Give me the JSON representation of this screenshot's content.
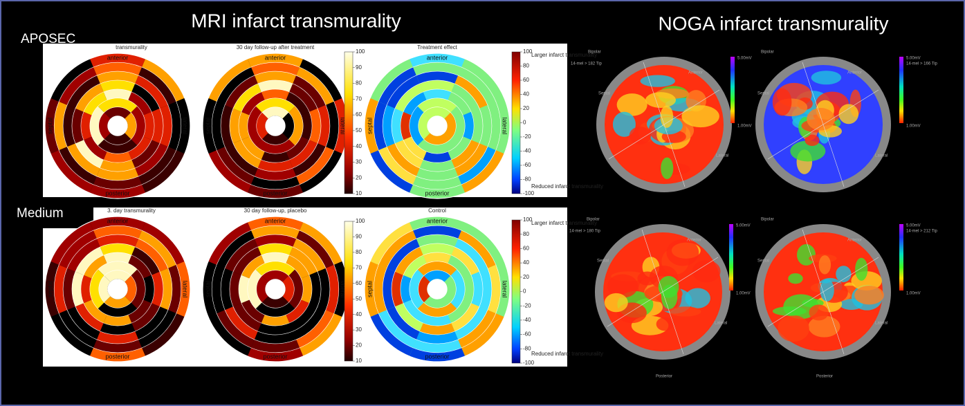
{
  "header": {
    "mri_title": "MRI infarct transmurality",
    "noga_title": "NOGA infarct transmurality"
  },
  "row_labels": [
    "APOSEC",
    "Medium"
  ],
  "mri_panels": [
    {
      "title": "transmurality",
      "kind": "absolute"
    },
    {
      "title": "30 day follow-up after treatment",
      "kind": "absolute"
    },
    {
      "title": "Treatment effect",
      "kind": "effect"
    },
    {
      "title": "3. day transmurality",
      "kind": "absolute"
    },
    {
      "title": "30 day follow-up, placebo",
      "kind": "absolute"
    },
    {
      "title": "Control",
      "kind": "effect"
    }
  ],
  "orientation": {
    "top": "anterior",
    "bottom": "posterior",
    "left": "septal",
    "right": "lateral"
  },
  "absolute_scale": {
    "ticks": [
      100,
      90,
      80,
      70,
      60,
      50,
      40,
      30,
      20,
      10
    ]
  },
  "effect_scale": {
    "ticks": [
      100,
      80,
      60,
      40,
      20,
      0,
      -20,
      -40,
      -60,
      -80,
      -100
    ],
    "top_label": "Larger infarct transmurality",
    "bottom_label": "Reduced infarct transmurality"
  },
  "noga_panels": [
    {
      "mode": "Bipolar",
      "tip": "14-mel > 182 Tip"
    },
    {
      "mode": "Bipolar",
      "tip": "14-mel > 166 Tip"
    },
    {
      "mode": "Bipolar",
      "tip": "14-mel > 180 Tip"
    },
    {
      "mode": "Bipolar",
      "tip": "14-mel > 212 Tip"
    }
  ],
  "noga_scale": {
    "max": "5.00mV",
    "min": "1.00mV"
  },
  "noga_orientation": {
    "septal": "Septal",
    "anterior": "Anterior",
    "lateral": "Lateral",
    "posterior": "Posterior"
  }
}
